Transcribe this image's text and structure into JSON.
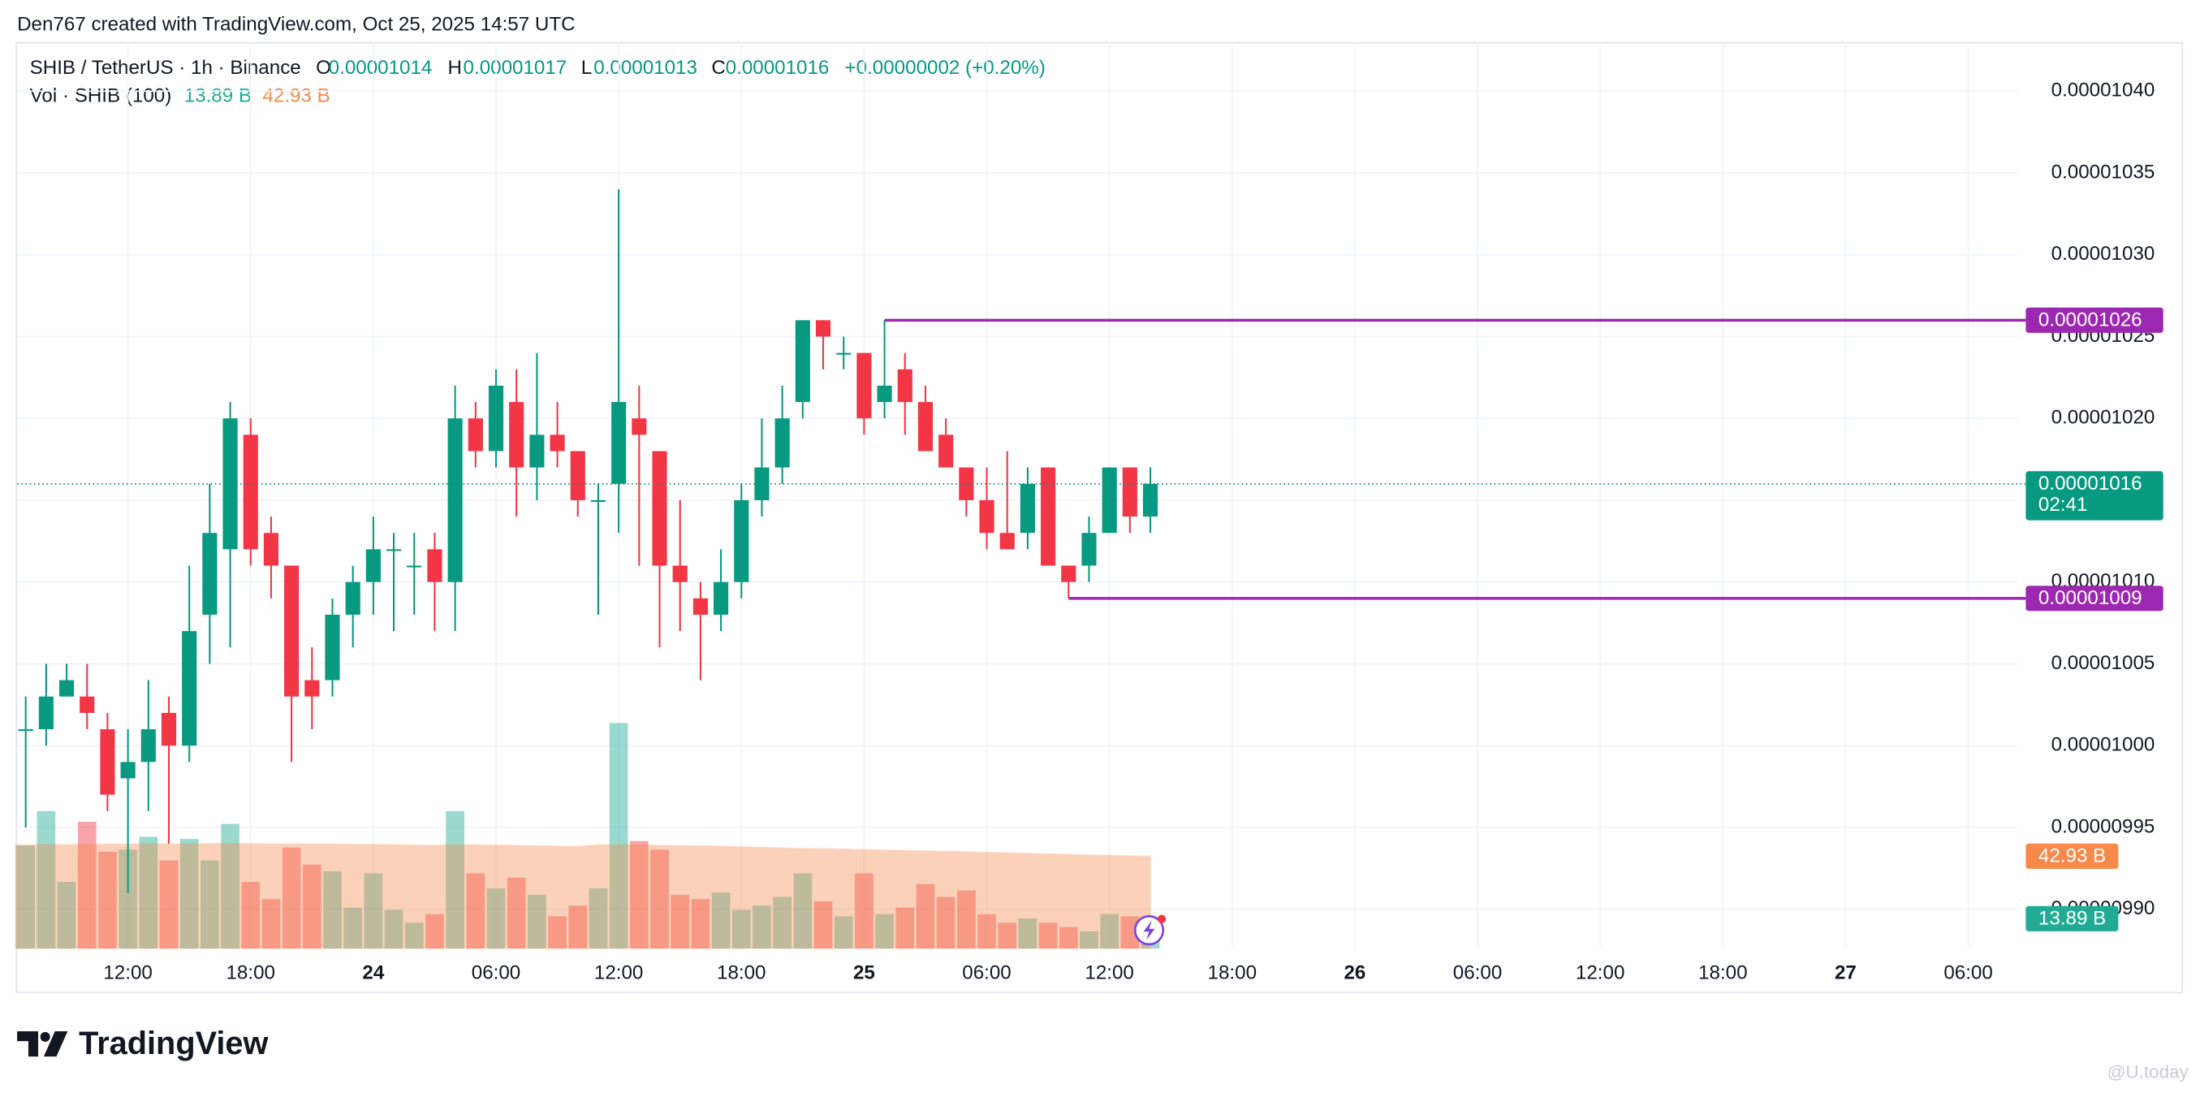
{
  "attribution": "Den767 created with TradingView.com, Oct 25, 2025 14:57 UTC",
  "header": {
    "symbol": "SHIB / TetherUS · 1h · Binance",
    "o": "O",
    "open": "0.00001014",
    "h": "H",
    "high": "0.00001017",
    "l": "L",
    "low": "0.00001013",
    "c": "C",
    "close": "0.00001016",
    "change": "+0.00000002 (+0.20%)"
  },
  "chart_data": {
    "type": "candlestick",
    "x": [
      7,
      8,
      9,
      10,
      11,
      12,
      13,
      14,
      15,
      16,
      17,
      18,
      19,
      20,
      21,
      22,
      23,
      24,
      25,
      26,
      27,
      28,
      29,
      30,
      31,
      32,
      33,
      34,
      35,
      36,
      37,
      38,
      39,
      40,
      41,
      42,
      43,
      44,
      45,
      46,
      47,
      48,
      49,
      50,
      51,
      52,
      53,
      54,
      55,
      56,
      57,
      58,
      59,
      60,
      61,
      62
    ],
    "open": [
      1.001e-05,
      1.001e-05,
      1.003e-05,
      1.003e-05,
      1.001e-05,
      9.98e-06,
      9.99e-06,
      1.002e-05,
      1e-05,
      1.008e-05,
      1.012e-05,
      1.019e-05,
      1.013e-05,
      1.011e-05,
      1.004e-05,
      1.004e-05,
      1.008e-05,
      1.01e-05,
      1.012e-05,
      1.011e-05,
      1.012e-05,
      1.01e-05,
      1.02e-05,
      1.018e-05,
      1.021e-05,
      1.017e-05,
      1.019e-05,
      1.018e-05,
      1.015e-05,
      1.016e-05,
      1.02e-05,
      1.018e-05,
      1.011e-05,
      1.009e-05,
      1.008e-05,
      1.01e-05,
      1.015e-05,
      1.017e-05,
      1.021e-05,
      1.026e-05,
      1.024e-05,
      1.024e-05,
      1.021e-05,
      1.023e-05,
      1.021e-05,
      1.019e-05,
      1.017e-05,
      1.015e-05,
      1.013e-05,
      1.013e-05,
      1.017e-05,
      1.011e-05,
      1.011e-05,
      1.013e-05,
      1.017e-05,
      1.014e-05
    ],
    "high": [
      1.003e-05,
      1.005e-05,
      1.005e-05,
      1.005e-05,
      1.002e-05,
      1.001e-05,
      1.004e-05,
      1.003e-05,
      1.011e-05,
      1.016e-05,
      1.021e-05,
      1.02e-05,
      1.014e-05,
      1.011e-05,
      1.006e-05,
      1.009e-05,
      1.011e-05,
      1.014e-05,
      1.013e-05,
      1.013e-05,
      1.013e-05,
      1.022e-05,
      1.021e-05,
      1.023e-05,
      1.023e-05,
      1.024e-05,
      1.021e-05,
      1.018e-05,
      1.016e-05,
      1.034e-05,
      1.022e-05,
      1.018e-05,
      1.015e-05,
      1.01e-05,
      1.012e-05,
      1.016e-05,
      1.02e-05,
      1.022e-05,
      1.026e-05,
      1.026e-05,
      1.025e-05,
      1.024e-05,
      1.026e-05,
      1.024e-05,
      1.022e-05,
      1.02e-05,
      1.017e-05,
      1.017e-05,
      1.018e-05,
      1.017e-05,
      1.017e-05,
      1.011e-05,
      1.014e-05,
      1.017e-05,
      1.017e-05,
      1.017e-05
    ],
    "low": [
      9.95e-06,
      1e-05,
      1.003e-05,
      1.001e-05,
      9.96e-06,
      9.91e-06,
      9.96e-06,
      9.94e-06,
      9.99e-06,
      1.005e-05,
      1.006e-05,
      1.011e-05,
      1.009e-05,
      9.99e-06,
      1.001e-05,
      1.003e-05,
      1.006e-05,
      1.008e-05,
      1.007e-05,
      1.008e-05,
      1.007e-05,
      1.007e-05,
      1.017e-05,
      1.017e-05,
      1.014e-05,
      1.015e-05,
      1.017e-05,
      1.014e-05,
      1.008e-05,
      1.013e-05,
      1.011e-05,
      1.006e-05,
      1.007e-05,
      1.004e-05,
      1.007e-05,
      1.009e-05,
      1.014e-05,
      1.016e-05,
      1.02e-05,
      1.023e-05,
      1.023e-05,
      1.019e-05,
      1.02e-05,
      1.019e-05,
      1.018e-05,
      1.017e-05,
      1.014e-05,
      1.012e-05,
      1.012e-05,
      1.012e-05,
      1.011e-05,
      1.009e-05,
      1.01e-05,
      1.013e-05,
      1.013e-05,
      1.013e-05
    ],
    "close": [
      1.001e-05,
      1.003e-05,
      1.004e-05,
      1.002e-05,
      9.97e-06,
      9.99e-06,
      1.001e-05,
      1e-05,
      1.007e-05,
      1.013e-05,
      1.02e-05,
      1.012e-05,
      1.011e-05,
      1.003e-05,
      1.003e-05,
      1.008e-05,
      1.01e-05,
      1.012e-05,
      1.012e-05,
      1.011e-05,
      1.01e-05,
      1.02e-05,
      1.018e-05,
      1.022e-05,
      1.017e-05,
      1.019e-05,
      1.018e-05,
      1.015e-05,
      1.015e-05,
      1.021e-05,
      1.019e-05,
      1.011e-05,
      1.01e-05,
      1.008e-05,
      1.01e-05,
      1.015e-05,
      1.017e-05,
      1.02e-05,
      1.026e-05,
      1.025e-05,
      1.024e-05,
      1.02e-05,
      1.022e-05,
      1.021e-05,
      1.018e-05,
      1.017e-05,
      1.015e-05,
      1.013e-05,
      1.012e-05,
      1.016e-05,
      1.011e-05,
      1.01e-05,
      1.013e-05,
      1.017e-05,
      1.014e-05,
      1.016e-05
    ],
    "up_color": "#089981",
    "down_color": "#f23645",
    "xlim": [
      6.58,
      104.4
    ],
    "xticks": [
      {
        "value": 12,
        "label": "12:00"
      },
      {
        "value": 18,
        "label": "18:00"
      },
      24,
      {
        "value": 30,
        "label": "06:00"
      },
      {
        "value": 36,
        "label": "12:00"
      },
      {
        "value": 42,
        "label": "18:00"
      },
      {
        "value": 48,
        "label": "25"
      },
      {
        "value": 54,
        "label": "06:00"
      },
      {
        "value": 60,
        "label": "12:00"
      },
      {
        "value": 66,
        "label": "18:00"
      },
      {
        "value": 72,
        "label": "26"
      },
      {
        "value": 78,
        "label": "06:00"
      },
      {
        "value": 84,
        "label": "12:00"
      },
      {
        "value": 90,
        "label": "18:00"
      },
      {
        "value": 96,
        "label": "27"
      },
      {
        "value": 102,
        "label": "06:00"
      }
    ],
    "ylim": [
      9.876e-06,
      1.043e-05
    ],
    "yticks": [
      {
        "value": 1.04e-05,
        "label": "0.00001040"
      },
      {
        "value": 1.035e-05,
        "label": "0.00001035"
      },
      {
        "value": 1.03e-05,
        "label": "0.00001030"
      },
      {
        "value": 1.025e-05,
        "label": "0.00001025"
      },
      {
        "value": 1.02e-05,
        "label": "0.00001020"
      },
      {
        "value": 1.015e-05,
        "label": "0.00001015"
      },
      {
        "value": 1.01e-05,
        "label": "0.00001010"
      },
      {
        "value": 1.005e-05,
        "label": "0.00001005"
      },
      {
        "value": 1e-05,
        "label": "0.00001000"
      },
      {
        "value": 9.95e-06,
        "label": "0.00000995"
      },
      {
        "value": 9.9e-06,
        "label": "0.00000990"
      }
    ],
    "grid": true,
    "last_price": {
      "value": 1.016e-05,
      "label": "0.00001016",
      "countdown": "02:41",
      "color": "#089981"
    },
    "levels": [
      {
        "value": 1.026e-05,
        "label": "0.00001026",
        "x": 49,
        "color": "#9c27b0"
      },
      {
        "value": 1.009e-05,
        "label": "0.00001009",
        "x": 58,
        "color": "#9c27b0"
      }
    ],
    "volume": {
      "name": "Vol · SHIB (100)",
      "ylim": [
        0,
        422
      ],
      "values": [
        48,
        64,
        31,
        59,
        45,
        46,
        52,
        41,
        51,
        41,
        58,
        31,
        23,
        47,
        39,
        36,
        19,
        35,
        18,
        12,
        16,
        64,
        35,
        28,
        33,
        25,
        15,
        20,
        28,
        105,
        50,
        46,
        25,
        23,
        26,
        18,
        20,
        24,
        35,
        22,
        15,
        35,
        16,
        19,
        30,
        24,
        27,
        16,
        12,
        14,
        12,
        10,
        8,
        16,
        15,
        13.89
      ],
      "last_label": "13.89 B",
      "ma_values": [
        48.2,
        48.4,
        48.3,
        48.5,
        48.6,
        48.6,
        48.7,
        48.6,
        48.7,
        48.8,
        48.9,
        48.8,
        48.7,
        48.7,
        48.6,
        48.6,
        48.5,
        48.4,
        48.3,
        48.1,
        48.0,
        48.3,
        48.2,
        48.1,
        48.0,
        47.8,
        47.6,
        47.5,
        48.2,
        48.3,
        48.2,
        48.0,
        47.9,
        47.7,
        47.6,
        47.3,
        47.1,
        46.8,
        46.6,
        46.4,
        46.2,
        46.0,
        45.8,
        45.6,
        45.4,
        45.2,
        45.0,
        44.7,
        44.5,
        44.3,
        44.0,
        43.8,
        43.5,
        43.3,
        43.1,
        42.93
      ],
      "ma_label": "42.93 B",
      "ma_color": "#f7894a",
      "up_color": "#22ab94"
    }
  },
  "brand": "TradingView",
  "watermark": "@U.today"
}
